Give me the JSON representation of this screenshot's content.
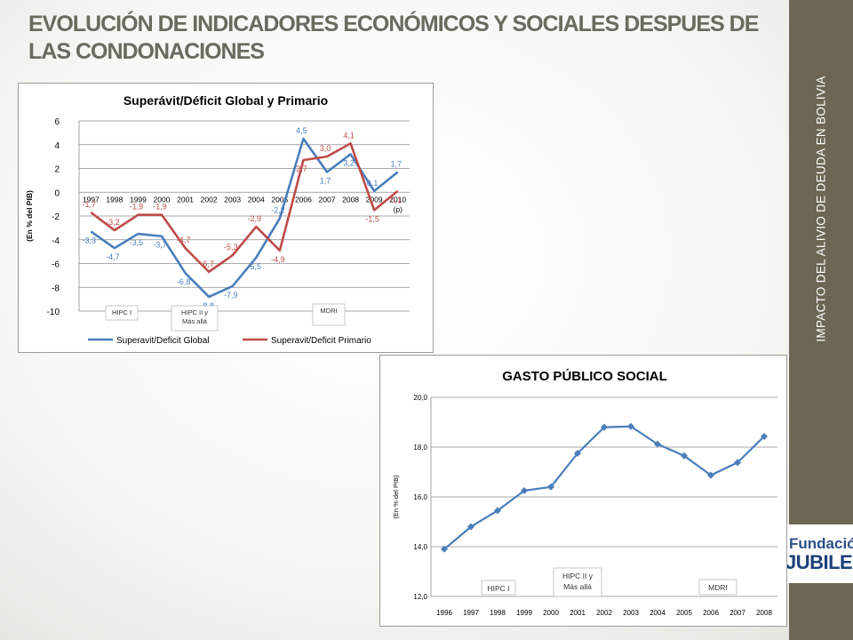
{
  "slide": {
    "title": "EVOLUCIÓN DE INDICADORES ECONÓMICOS Y SOCIALES DESPUES DE LAS CONDONACIONES",
    "side_label": "IMPACTO DEL ALIVIO DE DEUDA EN BOLIVIA",
    "logo_top": "Fundación",
    "logo_bottom": "JUBILEO"
  },
  "colors": {
    "series1": "#4a7ebb",
    "series2": "#be4b48",
    "band": "#6d6654",
    "title": "#6a6a5f"
  },
  "chart_data": [
    {
      "type": "line",
      "title": "Superávit/Déficit Global y Primario",
      "ylabel": "(En % del PIB)",
      "x": [
        "1997",
        "1998",
        "1999",
        "2000",
        "2001",
        "2002",
        "2003",
        "2004",
        "2005",
        "2006",
        "2007",
        "2008",
        "2009",
        "2010"
      ],
      "x_sub": [
        "",
        "",
        "",
        "",
        "",
        "",
        "",
        "",
        "",
        "",
        "",
        "",
        "",
        "(p)"
      ],
      "ylim": [
        -10,
        6
      ],
      "yticks": [
        -10,
        -8,
        -6,
        -4,
        -2,
        0,
        2,
        4,
        6
      ],
      "grid": true,
      "legend_position": "bottom",
      "series": [
        {
          "name": "Superavit/Deficit Global",
          "values": [
            -3.3,
            -4.7,
            -3.5,
            -3.7,
            -6.8,
            -8.8,
            -7.9,
            -5.5,
            -2.2,
            4.5,
            1.7,
            3.2,
            0.1,
            1.7
          ],
          "labels": [
            "-3,3",
            "-4,7",
            "-3,5",
            "-3,7",
            "-6,8",
            "-8,8",
            "-7,9",
            "-5,5",
            "-2,2",
            "4,5",
            "1,7",
            "3,2",
            "0,1",
            "1,7"
          ]
        },
        {
          "name": "Superavit/Deficit Primario",
          "values": [
            -1.7,
            -3.2,
            -1.9,
            -1.9,
            -4.7,
            -6.7,
            -5.3,
            -2.9,
            -4.9,
            2.7,
            3.0,
            4.1,
            -1.5,
            0.1
          ],
          "labels": [
            "-1,7",
            "-3,2",
            "-1,9",
            "-1,9",
            "-4,7",
            "-6,7",
            "-5,3",
            "-2,9",
            "-4,9",
            "2,7",
            "3,0",
            "4,1",
            "-1,5",
            "0,1"
          ]
        }
      ],
      "annotations": [
        "HIPC I",
        "HIPC II y Más allá",
        "MDRI"
      ]
    },
    {
      "type": "line",
      "title": "GASTO PÚBLICO SOCIAL",
      "ylabel": "(En % del PIB)",
      "x": [
        "1996",
        "1997",
        "1998",
        "1999",
        "2000",
        "2001",
        "2002",
        "2003",
        "2004",
        "2005",
        "2006",
        "2007",
        "2008"
      ],
      "ylim": [
        12,
        20
      ],
      "yticks": [
        "12,0",
        "14,0",
        "16,0",
        "18,0",
        "20,0"
      ],
      "ytick_values": [
        12,
        14,
        16,
        18,
        20
      ],
      "grid": true,
      "series": [
        {
          "values": [
            13.9,
            14.8,
            15.45,
            16.25,
            16.4,
            17.75,
            18.8,
            18.83,
            18.12,
            17.65,
            16.87,
            17.38,
            18.43
          ]
        }
      ],
      "annotations": [
        "HIPC I",
        "HIPC II y Más allá",
        "MDRI"
      ]
    }
  ]
}
